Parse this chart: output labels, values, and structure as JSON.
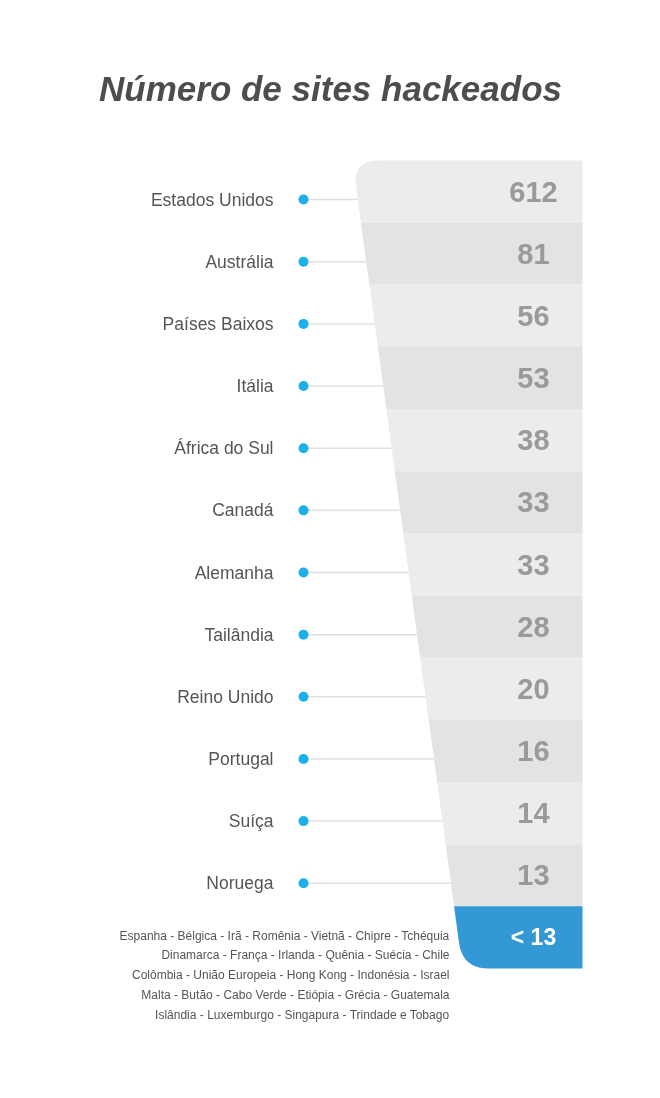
{
  "chart_data": {
    "type": "other",
    "title": "Número de sites hackeados",
    "categories": [
      "Estados Unidos",
      "Austrália",
      "Países Baixos",
      "Itália",
      "África do Sul",
      "Canadá",
      "Alemanha",
      "Tailândia",
      "Reino Unido",
      "Portugal",
      "Suíça",
      "Noruega"
    ],
    "values": [
      612,
      81,
      56,
      53,
      38,
      33,
      33,
      28,
      20,
      16,
      14,
      13
    ],
    "colors": [
      "#ececec",
      "#e3e3e3",
      "#ececec",
      "#e3e3e3",
      "#ececec",
      "#e3e3e3",
      "#ececec",
      "#e3e3e3",
      "#ececec",
      "#e3e3e3",
      "#ececec",
      "#e3e3e3"
    ],
    "data_labels": true,
    "annotations": [
      "< 13",
      "Espanha - Bélgica - Irã - Romênia - Vietnã - Chipre - Tchéquia\nDinamarca - França - Irlanda - Quênia - Suécia - Chile\nColômbia - União Europeia - Hong Kong - Indonésia - Israel\nMalta - Butão - Cabo Verde - Etiópia - Grécia - Guatemala\nIslândia - Luxemburgo - Singapura - Trindade e Tobago"
    ]
  }
}
